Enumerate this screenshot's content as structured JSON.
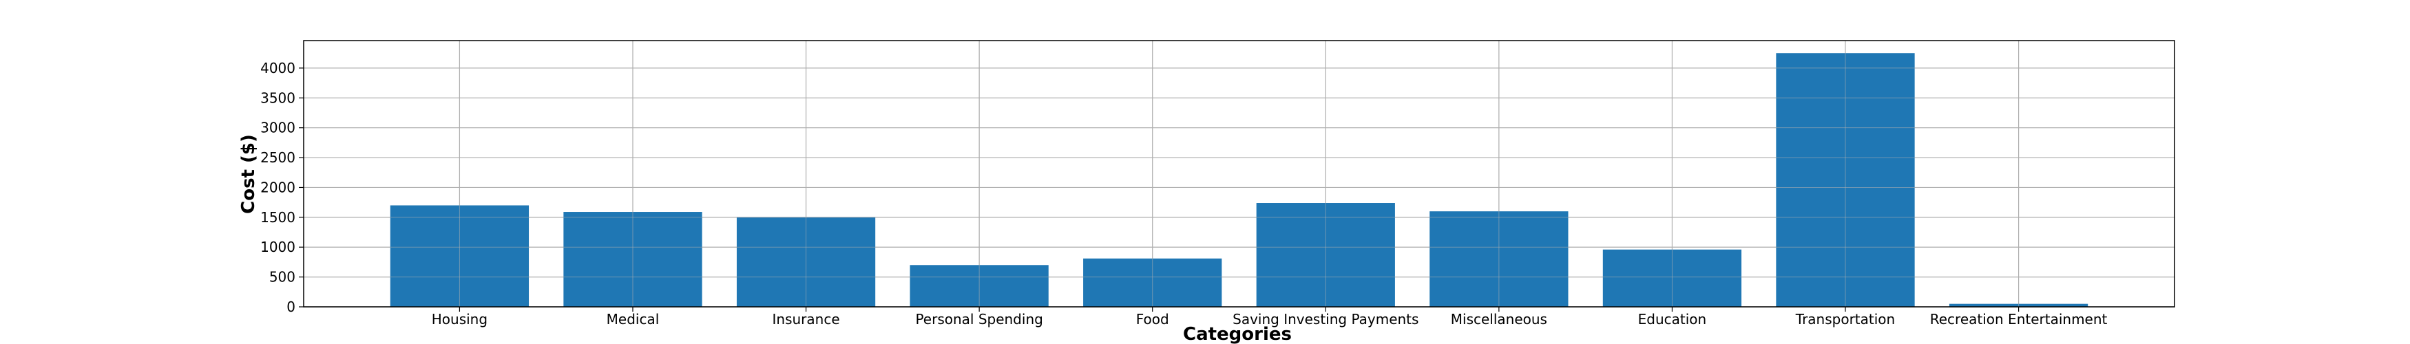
{
  "chart_data": {
    "type": "bar",
    "title": "",
    "xlabel": "Categories",
    "ylabel": "Cost ($)",
    "categories": [
      "Housing",
      "Medical",
      "Insurance",
      "Personal Spending",
      "Food",
      "Saving Investing Payments",
      "Miscellaneous",
      "Education",
      "Transportation",
      "Recreation Entertainment"
    ],
    "values": [
      1700,
      1590,
      1500,
      700,
      810,
      1740,
      1600,
      960,
      4250,
      50
    ],
    "ylim": [
      0,
      4460
    ],
    "yticks": [
      0,
      500,
      1000,
      1500,
      2000,
      2500,
      3000,
      3500,
      4000
    ],
    "grid": true,
    "bar_color": "#1f77b4",
    "grid_color": "#b0b0b0"
  }
}
